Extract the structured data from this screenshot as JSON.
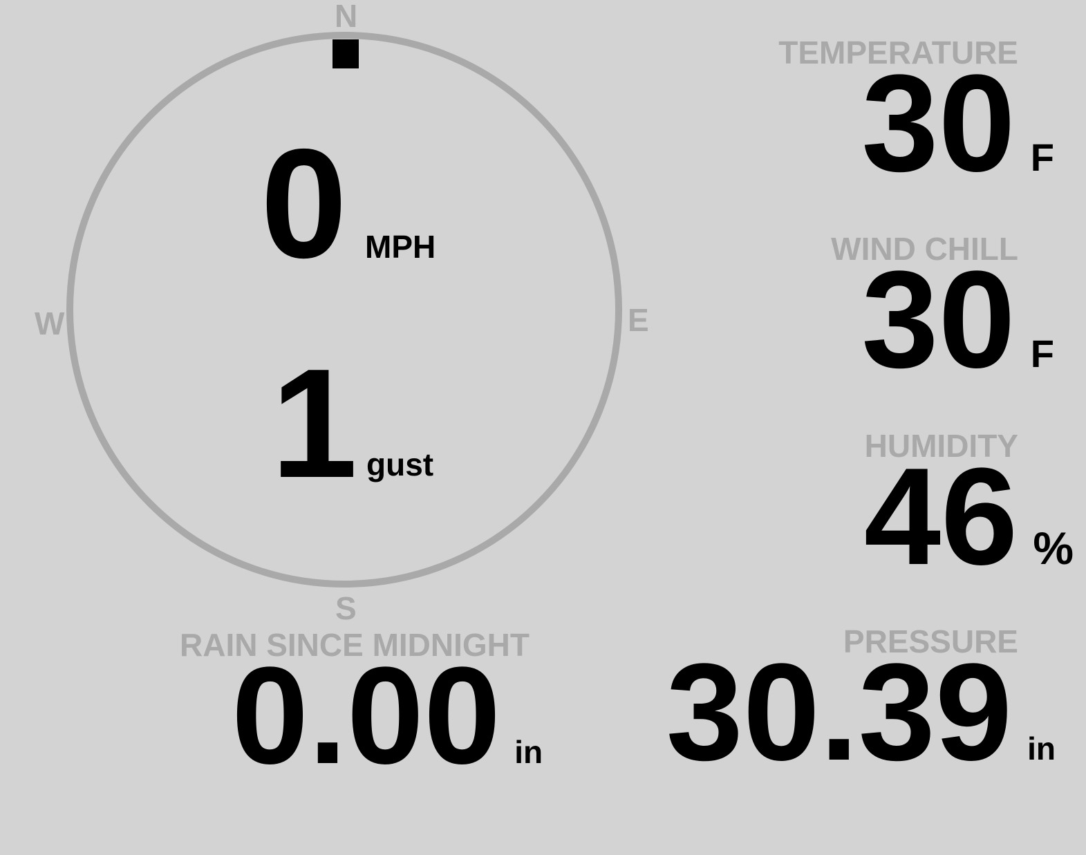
{
  "colors": {
    "background": "#d3d3d3",
    "muted": "#a9a9a9",
    "value": "#000000"
  },
  "compass": {
    "north": "N",
    "south": "S",
    "east": "E",
    "west": "W",
    "wind_direction_deg": 0,
    "speed": "0",
    "speed_unit": "MPH",
    "gust": "1",
    "gust_unit": "gust"
  },
  "temperature": {
    "label": "TEMPERATURE",
    "value": "30",
    "unit": "F"
  },
  "wind_chill": {
    "label": "WIND CHILL",
    "value": "30",
    "unit": "F"
  },
  "humidity": {
    "label": "HUMIDITY",
    "value": "46",
    "unit": "%"
  },
  "rain": {
    "label": "RAIN SINCE MIDNIGHT",
    "value": "0.00",
    "unit": "in"
  },
  "pressure": {
    "label": "PRESSURE",
    "value": "30.39",
    "unit": "in"
  }
}
